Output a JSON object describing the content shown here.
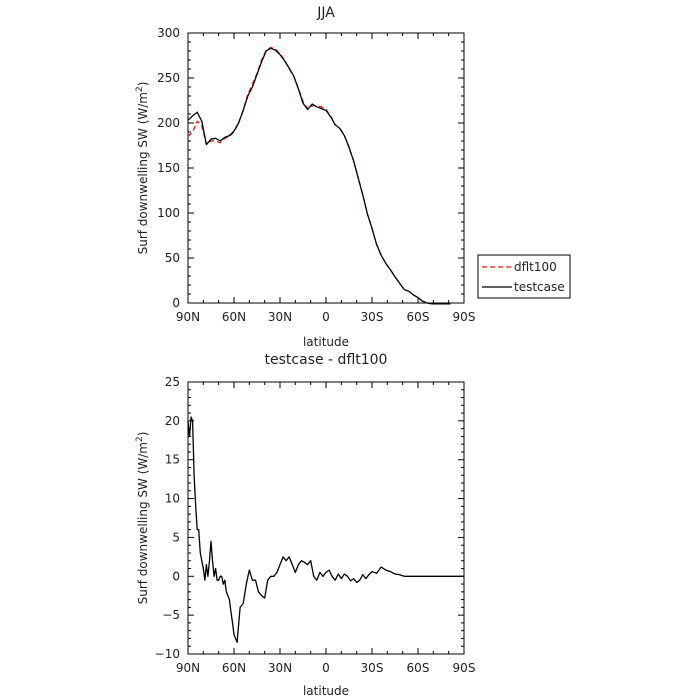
{
  "chart_data": [
    {
      "type": "line",
      "title": "JJA",
      "xlabel": "latitude",
      "ylabel": "Surf downwelling SW (W/m",
      "ylabel_sup": "2",
      "ylabel_close": ")",
      "xlim": [
        90,
        -90
      ],
      "ylim": [
        0,
        300
      ],
      "x_ticks": [
        90,
        60,
        30,
        0,
        -30,
        -60,
        -90
      ],
      "x_tick_labels": [
        "90N",
        "60N",
        "30N",
        "0",
        "30S",
        "60S",
        "90S"
      ],
      "y_ticks": [
        0,
        50,
        100,
        150,
        200,
        250,
        300
      ],
      "y_tick_labels": [
        "0",
        "50",
        "100",
        "150",
        "200",
        "250",
        "300"
      ],
      "legend_position": "right",
      "series": [
        {
          "name": "dflt100",
          "color": "#e0201b",
          "dash": "dashed",
          "x": [
            90,
            87,
            84,
            81,
            78,
            75,
            72,
            69,
            66,
            63,
            60,
            57,
            54,
            51,
            48,
            45,
            42,
            39,
            36,
            33,
            30,
            27,
            24,
            21,
            18,
            15,
            12,
            9,
            6,
            3,
            0,
            -3,
            -6,
            -9,
            -12,
            -15,
            -18,
            -21,
            -24,
            -27,
            -30,
            -33,
            -36,
            -39,
            -42,
            -45,
            -48,
            -51,
            -54,
            -57,
            -60,
            -63,
            -66,
            -69,
            -72,
            -75,
            -78,
            -81
          ],
          "y": [
            185,
            190,
            202,
            197,
            176,
            180,
            180,
            178,
            183,
            185,
            190,
            200,
            214,
            232,
            243,
            255,
            270,
            281,
            284,
            282,
            277,
            270,
            260,
            252,
            238,
            224,
            216,
            219,
            219,
            218,
            215,
            208,
            198,
            194,
            186,
            173,
            158,
            139,
            120,
            99,
            83,
            65,
            53,
            44,
            37,
            29,
            22,
            15,
            13,
            9,
            6,
            2,
            0,
            -1,
            -1,
            -1,
            -1,
            -1
          ]
        },
        {
          "name": "testcase",
          "color": "#000000",
          "dash": "solid",
          "x": [
            90,
            87,
            84,
            81,
            78,
            75,
            72,
            69,
            66,
            63,
            60,
            57,
            54,
            51,
            48,
            45,
            42,
            39,
            36,
            33,
            30,
            27,
            24,
            21,
            18,
            15,
            12,
            9,
            6,
            3,
            0,
            -3,
            -6,
            -9,
            -12,
            -15,
            -18,
            -21,
            -24,
            -27,
            -30,
            -33,
            -36,
            -39,
            -42,
            -45,
            -48,
            -51,
            -54,
            -57,
            -60,
            -63,
            -66,
            -69,
            -72,
            -75,
            -78,
            -81
          ],
          "y": [
            203,
            208,
            212,
            202,
            176,
            182,
            183,
            180,
            184,
            186,
            191,
            200,
            214,
            230,
            240,
            254,
            268,
            280,
            283,
            281,
            276,
            269,
            261,
            252,
            238,
            222,
            215,
            221,
            218,
            216,
            214,
            207,
            198,
            194,
            186,
            173,
            158,
            139,
            120,
            99,
            83,
            65,
            53,
            44,
            37,
            29,
            22,
            15,
            13,
            9,
            6,
            2,
            0,
            -1,
            -1,
            -1,
            -1,
            -1
          ]
        }
      ]
    },
    {
      "type": "line",
      "title": "testcase - dflt100",
      "xlabel": "latitude",
      "ylabel": "Surf downwelling SW (W/m",
      "ylabel_sup": "2",
      "ylabel_close": ")",
      "xlim": [
        90,
        -90
      ],
      "ylim": [
        -10,
        25
      ],
      "x_ticks": [
        90,
        60,
        30,
        0,
        -30,
        -60,
        -90
      ],
      "x_tick_labels": [
        "90N",
        "60N",
        "30N",
        "0",
        "30S",
        "60S",
        "90S"
      ],
      "y_ticks": [
        -10,
        -5,
        0,
        5,
        10,
        15,
        20,
        25
      ],
      "y_tick_labels": [
        "−10",
        "−5",
        "0",
        "5",
        "10",
        "15",
        "20",
        "25"
      ],
      "series": [
        {
          "name": "testcase - dflt100",
          "color": "#000000",
          "dash": "solid",
          "x": [
            90,
            89,
            88,
            87,
            86,
            85,
            84,
            83,
            82,
            81,
            80,
            79,
            78,
            77,
            76,
            75,
            74,
            73,
            72,
            71,
            70,
            69,
            68,
            67,
            66,
            65,
            64,
            63,
            62,
            61,
            60,
            58,
            56,
            54,
            52,
            50,
            48,
            46,
            44,
            42,
            40,
            38,
            36,
            34,
            32,
            30,
            28,
            26,
            24,
            22,
            20,
            18,
            16,
            14,
            12,
            10,
            8,
            6,
            4,
            2,
            0,
            -2,
            -4,
            -6,
            -8,
            -10,
            -12,
            -14,
            -16,
            -18,
            -20,
            -22,
            -24,
            -26,
            -28,
            -30,
            -33,
            -36,
            -39,
            -42,
            -45,
            -48,
            -51,
            -54,
            -57,
            -60,
            -63,
            -66,
            -69,
            -72,
            -75,
            -78,
            -81,
            -84,
            -87,
            -90
          ],
          "y": [
            20,
            18,
            20.5,
            20,
            13,
            9,
            6,
            6,
            3,
            2,
            1,
            -0.5,
            1.5,
            0,
            2,
            4.5,
            2,
            0,
            1,
            -0.5,
            -0.5,
            0,
            0,
            -1,
            -0.5,
            -2,
            -2.5,
            -3,
            -4.5,
            -6,
            -7.5,
            -8.5,
            -4,
            -3.5,
            -1,
            0.8,
            -0.5,
            -0.5,
            -2,
            -2.5,
            -2.8,
            -0.5,
            0,
            0,
            0.5,
            1.5,
            2.5,
            2,
            2.5,
            1.5,
            0.5,
            1.5,
            2,
            1.8,
            1.5,
            2,
            0,
            -0.5,
            0.5,
            0,
            0.5,
            0.8,
            0,
            -0.5,
            0.3,
            -0.3,
            0.3,
            0,
            -0.6,
            -0.3,
            -0.8,
            -0.5,
            0.2,
            -0.3,
            0.2,
            0.6,
            0.4,
            1.2,
            0.8,
            0.6,
            0.3,
            0.2,
            0,
            0,
            0,
            0,
            0,
            0,
            0,
            0,
            0,
            0,
            0,
            0,
            0,
            0
          ]
        }
      ]
    }
  ]
}
